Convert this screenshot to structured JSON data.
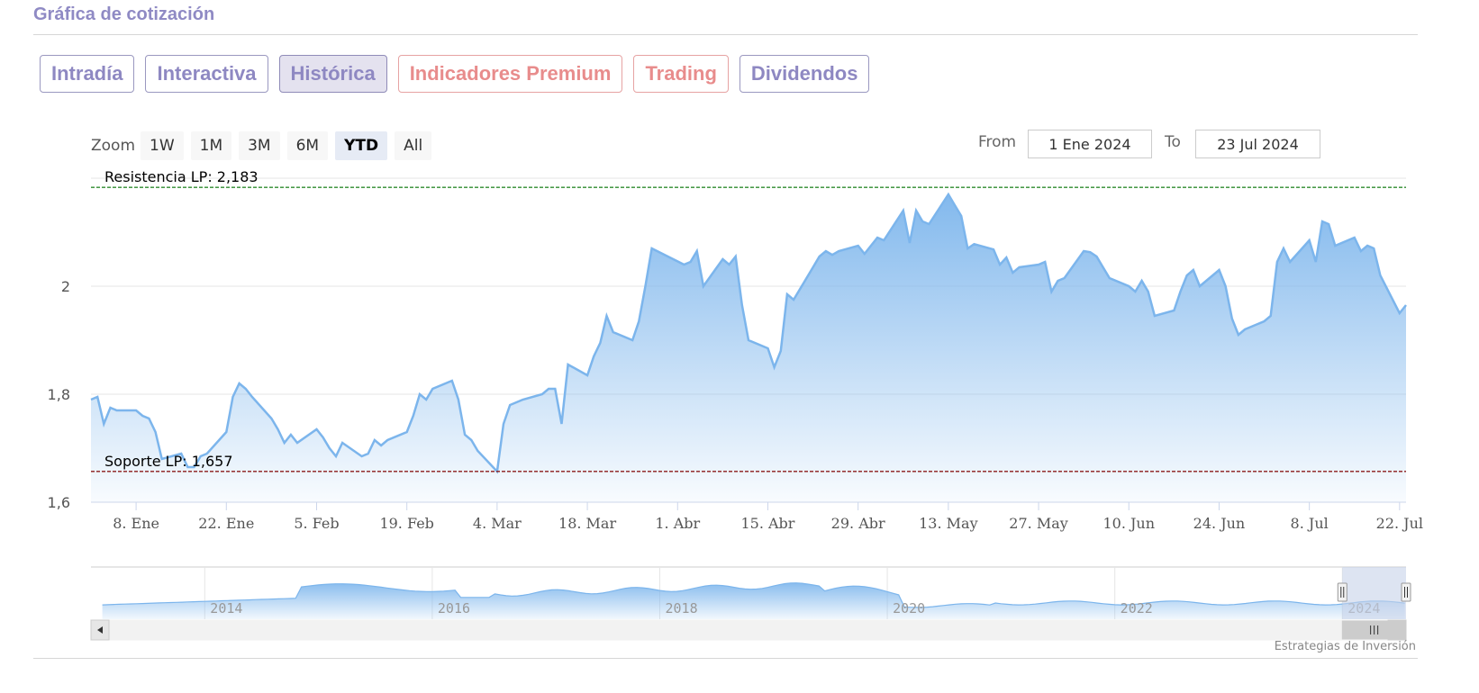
{
  "header": {
    "title": "Gráfica de cotización"
  },
  "tabs": [
    {
      "label": "Intradía",
      "variant": "normal"
    },
    {
      "label": "Interactiva",
      "variant": "normal"
    },
    {
      "label": "Histórica",
      "variant": "active"
    },
    {
      "label": "Indicadores Premium",
      "variant": "premium"
    },
    {
      "label": "Trading",
      "variant": "premium"
    },
    {
      "label": "Dividendos",
      "variant": "normal"
    }
  ],
  "range_selector": {
    "zoom_label": "Zoom",
    "buttons": [
      "1W",
      "1M",
      "3M",
      "6M",
      "YTD",
      "All"
    ],
    "selected": "YTD",
    "from_label": "From",
    "from_value": "1 Ene 2024",
    "to_label": "To",
    "to_value": "23 Jul 2024"
  },
  "credit": "Estrategias de Inversión",
  "colors": {
    "line": "#7cb5ec",
    "fill_top": "#7cb5ec",
    "resistance": "#2e8b2e",
    "support": "#8b1a1a",
    "navigator_mask": "#c7d2ea"
  },
  "chart_data": {
    "type": "area",
    "x_start": "2024-01-01",
    "x_end": "2024-07-23",
    "ylim": [
      1.6,
      2.2
    ],
    "y_ticks": [
      {
        "value": 1.6,
        "label": "1,6"
      },
      {
        "value": 1.8,
        "label": "1,8"
      },
      {
        "value": 2.0,
        "label": "2"
      }
    ],
    "x_ticks": [
      {
        "date": "2024-01-08",
        "label": "8. Ene"
      },
      {
        "date": "2024-01-22",
        "label": "22. Ene"
      },
      {
        "date": "2024-02-05",
        "label": "5. Feb"
      },
      {
        "date": "2024-02-19",
        "label": "19. Feb"
      },
      {
        "date": "2024-03-04",
        "label": "4. Mar"
      },
      {
        "date": "2024-03-18",
        "label": "18. Mar"
      },
      {
        "date": "2024-04-01",
        "label": "1. Abr"
      },
      {
        "date": "2024-04-15",
        "label": "15. Abr"
      },
      {
        "date": "2024-04-29",
        "label": "29. Abr"
      },
      {
        "date": "2024-05-13",
        "label": "13. May"
      },
      {
        "date": "2024-05-27",
        "label": "27. May"
      },
      {
        "date": "2024-06-10",
        "label": "10. Jun"
      },
      {
        "date": "2024-06-24",
        "label": "24. Jun"
      },
      {
        "date": "2024-07-08",
        "label": "8. Jul"
      },
      {
        "date": "2024-07-22",
        "label": "22. Jul"
      }
    ],
    "grid": true,
    "series": [
      {
        "x": [
          "2024-01-01",
          "2024-01-02",
          "2024-01-03",
          "2024-01-04",
          "2024-01-05",
          "2024-01-08",
          "2024-01-09",
          "2024-01-10",
          "2024-01-11",
          "2024-01-12",
          "2024-01-15",
          "2024-01-16",
          "2024-01-17",
          "2024-01-18",
          "2024-01-19",
          "2024-01-22",
          "2024-01-23",
          "2024-01-24",
          "2024-01-25",
          "2024-01-26",
          "2024-01-29",
          "2024-01-30",
          "2024-01-31",
          "2024-02-01",
          "2024-02-02",
          "2024-02-05",
          "2024-02-06",
          "2024-02-07",
          "2024-02-08",
          "2024-02-09",
          "2024-02-12",
          "2024-02-13",
          "2024-02-14",
          "2024-02-15",
          "2024-02-16",
          "2024-02-19",
          "2024-02-20",
          "2024-02-21",
          "2024-02-22",
          "2024-02-23",
          "2024-02-26",
          "2024-02-27",
          "2024-02-28",
          "2024-02-29",
          "2024-03-01",
          "2024-03-04",
          "2024-03-05",
          "2024-03-06",
          "2024-03-07",
          "2024-03-08",
          "2024-03-11",
          "2024-03-12",
          "2024-03-13",
          "2024-03-14",
          "2024-03-15",
          "2024-03-18",
          "2024-03-19",
          "2024-03-20",
          "2024-03-21",
          "2024-03-22",
          "2024-03-25",
          "2024-03-26",
          "2024-03-27",
          "2024-03-28",
          "2024-04-02",
          "2024-04-03",
          "2024-04-04",
          "2024-04-05",
          "2024-04-08",
          "2024-04-09",
          "2024-04-10",
          "2024-04-11",
          "2024-04-12",
          "2024-04-15",
          "2024-04-16",
          "2024-04-17",
          "2024-04-18",
          "2024-04-19",
          "2024-04-22",
          "2024-04-23",
          "2024-04-24",
          "2024-04-25",
          "2024-04-26",
          "2024-04-29",
          "2024-04-30",
          "2024-05-02",
          "2024-05-03",
          "2024-05-06",
          "2024-05-07",
          "2024-05-08",
          "2024-05-09",
          "2024-05-10",
          "2024-05-13",
          "2024-05-14",
          "2024-05-15",
          "2024-05-16",
          "2024-05-17",
          "2024-05-20",
          "2024-05-21",
          "2024-05-22",
          "2024-05-23",
          "2024-05-24",
          "2024-05-27",
          "2024-05-28",
          "2024-05-29",
          "2024-05-30",
          "2024-05-31",
          "2024-06-03",
          "2024-06-04",
          "2024-06-05",
          "2024-06-06",
          "2024-06-07",
          "2024-06-10",
          "2024-06-11",
          "2024-06-12",
          "2024-06-13",
          "2024-06-14",
          "2024-06-17",
          "2024-06-18",
          "2024-06-19",
          "2024-06-20",
          "2024-06-21",
          "2024-06-24",
          "2024-06-25",
          "2024-06-26",
          "2024-06-27",
          "2024-06-28",
          "2024-07-01",
          "2024-07-02",
          "2024-07-03",
          "2024-07-04",
          "2024-07-05",
          "2024-07-08",
          "2024-07-09",
          "2024-07-10",
          "2024-07-11",
          "2024-07-12",
          "2024-07-15",
          "2024-07-16",
          "2024-07-17",
          "2024-07-18",
          "2024-07-19",
          "2024-07-22",
          "2024-07-23"
        ],
        "values": [
          1.79,
          1.795,
          1.745,
          1.775,
          1.77,
          1.77,
          1.76,
          1.755,
          1.73,
          1.68,
          1.69,
          1.665,
          1.665,
          1.685,
          1.69,
          1.73,
          1.795,
          1.82,
          1.81,
          1.795,
          1.755,
          1.735,
          1.71,
          1.725,
          1.71,
          1.735,
          1.72,
          1.7,
          1.685,
          1.71,
          1.685,
          1.69,
          1.715,
          1.705,
          1.715,
          1.73,
          1.76,
          1.8,
          1.79,
          1.81,
          1.825,
          1.79,
          1.725,
          1.715,
          1.695,
          1.657,
          1.745,
          1.78,
          1.785,
          1.79,
          1.8,
          1.81,
          1.81,
          1.745,
          1.855,
          1.835,
          1.87,
          1.895,
          1.945,
          1.915,
          1.9,
          1.935,
          2.0,
          2.07,
          2.04,
          2.045,
          2.065,
          2.0,
          2.05,
          2.04,
          2.055,
          1.965,
          1.9,
          1.885,
          1.85,
          1.88,
          1.985,
          1.975,
          2.035,
          2.055,
          2.065,
          2.058,
          2.065,
          2.075,
          2.06,
          2.09,
          2.085,
          2.14,
          2.08,
          2.14,
          2.12,
          2.115,
          2.17,
          2.15,
          2.13,
          2.07,
          2.078,
          2.068,
          2.04,
          2.053,
          2.025,
          2.035,
          2.04,
          2.045,
          1.99,
          2.01,
          2.015,
          2.065,
          2.063,
          2.055,
          2.035,
          2.015,
          2.0,
          1.99,
          2.01,
          1.99,
          1.945,
          1.955,
          1.99,
          2.02,
          2.03,
          2.0,
          2.03,
          2.0,
          1.94,
          1.91,
          1.92,
          1.935,
          1.945,
          2.045,
          2.07,
          2.045,
          2.085,
          2.045,
          2.12,
          2.115,
          2.075,
          2.09,
          2.065,
          2.075,
          2.07,
          2.02,
          1.95,
          1.965
        ]
      }
    ],
    "annotations": [
      {
        "label": "Resistencia LP: 2,183",
        "value": 2.183,
        "style": "dashed"
      },
      {
        "label": "Soporte LP: 1,657",
        "value": 1.657,
        "style": "dashed"
      }
    ],
    "navigator": {
      "x_labels": [
        "2014",
        "2016",
        "2018",
        "2020",
        "2022",
        "2024"
      ],
      "x_start": 2013,
      "x_end": 2024.56,
      "selection_start": 2024.0,
      "selection_end": 2024.56
    }
  }
}
